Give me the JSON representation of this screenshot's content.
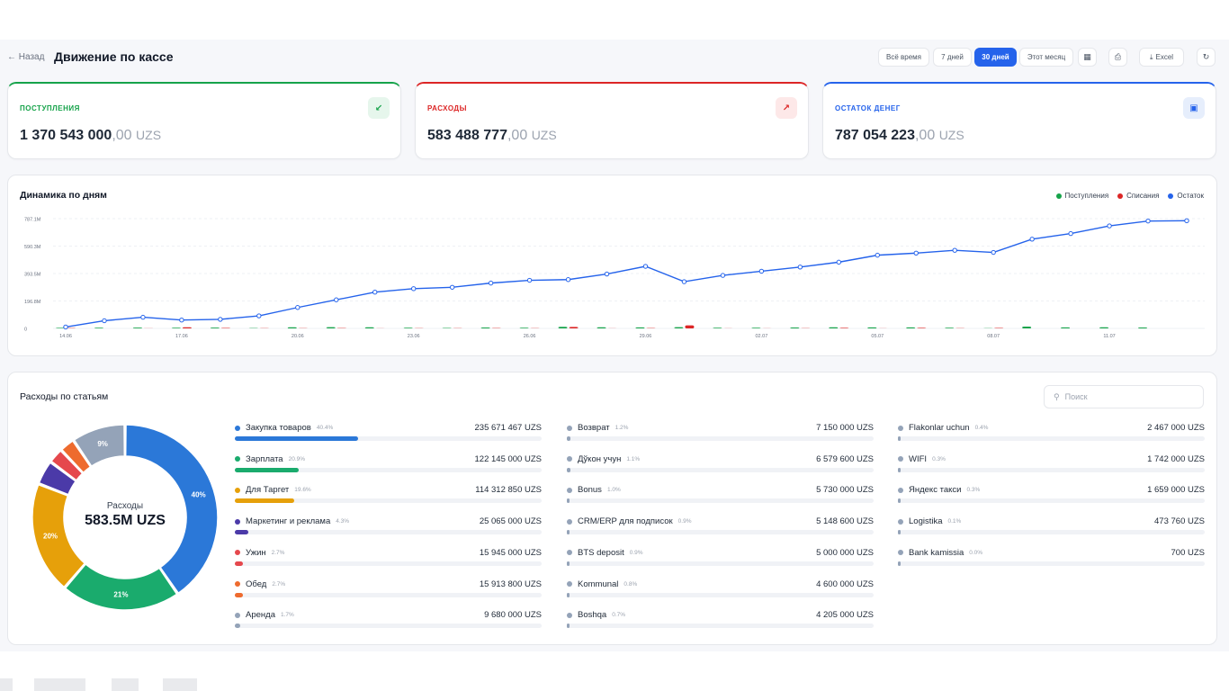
{
  "header": {
    "back_label": "← Назад",
    "title": "Движение по кассе",
    "periods": [
      "Всё время",
      "7 дней",
      "30 дней",
      "Этот месяц"
    ],
    "active_period": "30 дней",
    "excel_label": "Excel"
  },
  "kpis": [
    {
      "label": "ПОСТУПЛЕНИЯ",
      "int": "1 370 543 000",
      "dec": ",00",
      "cur": "UZS",
      "color": "#16a34a",
      "icon": "arrow-down-left-icon",
      "glyph": "↙",
      "bg": "#e6f6ec"
    },
    {
      "label": "РАСХОДЫ",
      "int": "583 488 777",
      "dec": ",00",
      "cur": "UZS",
      "color": "#dc2626",
      "icon": "arrow-up-right-icon",
      "glyph": "↗",
      "bg": "#fde8e8"
    },
    {
      "label": "ОСТАТОК ДЕНЕГ",
      "int": "787 054 223",
      "dec": ",00",
      "cur": "UZS",
      "color": "#2563eb",
      "icon": "wallet-icon",
      "glyph": "▣",
      "bg": "#e6eefc"
    }
  ],
  "daily": {
    "title": "Динамика по дням",
    "legend": [
      {
        "label": "Поступления",
        "color": "#16a34a"
      },
      {
        "label": "Списания",
        "color": "#dc2626"
      },
      {
        "label": "Остаток",
        "color": "#2563eb"
      }
    ]
  },
  "chart_data": {
    "type": "bar",
    "title": "Динамика по дням",
    "y_ticks": [
      "0",
      "196.8M",
      "393.5M",
      "590.3M",
      "787.1M"
    ],
    "y_tick_values": [
      0,
      196.8,
      393.5,
      590.3,
      787.1
    ],
    "ylim": [
      0,
      787.1
    ],
    "x_ticks": [
      "14.06",
      "17.06",
      "20.06",
      "23.06",
      "26.06",
      "29.06",
      "02.07",
      "05.07",
      "08.07",
      "11.07"
    ],
    "categories": [
      "14.06",
      "15.06",
      "16.06",
      "17.06",
      "18.06",
      "19.06",
      "20.06",
      "21.06",
      "22.06",
      "23.06",
      "24.06",
      "25.06",
      "26.06",
      "27.06",
      "28.06",
      "29.06",
      "30.06",
      "01.07",
      "02.07",
      "03.07",
      "04.07",
      "05.07",
      "06.07",
      "07.07",
      "08.07",
      "09.07",
      "10.07",
      "11.07",
      "12.07",
      "13.07"
    ],
    "series": [
      {
        "name": "Поступления",
        "color": "#16a34a",
        "values": [
          30,
          35,
          40,
          35,
          38,
          20,
          60,
          65,
          55,
          35,
          25,
          45,
          35,
          80,
          55,
          50,
          65,
          35,
          35,
          45,
          60,
          50,
          50,
          35,
          10,
          95,
          50,
          55,
          45,
          0
        ]
      },
      {
        "name": "Списания",
        "color": "#dc2626",
        "values": [
          20,
          0,
          8,
          60,
          25,
          10,
          10,
          15,
          5,
          10,
          10,
          20,
          10,
          75,
          5,
          20,
          155,
          5,
          5,
          10,
          30,
          5,
          30,
          10,
          25,
          0,
          0,
          0,
          0,
          0
        ]
      },
      {
        "name": "Остаток",
        "color": "#2563eb",
        "values": [
          10,
          55,
          80,
          60,
          65,
          90,
          150,
          205,
          260,
          285,
          295,
          325,
          345,
          350,
          390,
          445,
          335,
          380,
          410,
          440,
          475,
          525,
          540,
          560,
          545,
          640,
          680,
          735,
          770,
          772
        ]
      }
    ]
  },
  "expenses": {
    "title": "Расходы по статьям",
    "search_placeholder": "Поиск",
    "center_label": "Расходы",
    "center_value": "583.5M UZS",
    "items": [
      {
        "name": "Закупка товаров",
        "pct": "40.4%",
        "amount": "235 671 467 UZS",
        "share": 40.4,
        "color": "#2b78d8"
      },
      {
        "name": "Зарплата",
        "pct": "20.9%",
        "amount": "122 145 000 UZS",
        "share": 20.9,
        "color": "#1aab6d"
      },
      {
        "name": "Для Таргет",
        "pct": "19.6%",
        "amount": "114 312 850 UZS",
        "share": 19.6,
        "color": "#e6a00a"
      },
      {
        "name": "Маркетинг и реклама",
        "pct": "4.3%",
        "amount": "25 065 000 UZS",
        "share": 4.3,
        "color": "#4b3aa8"
      },
      {
        "name": "Ужин",
        "pct": "2.7%",
        "amount": "15 945 000 UZS",
        "share": 2.7,
        "color": "#e5484d"
      },
      {
        "name": "Обед",
        "pct": "2.7%",
        "amount": "15 913 800 UZS",
        "share": 2.7,
        "color": "#ee6b2e"
      },
      {
        "name": "Аренда",
        "pct": "1.7%",
        "amount": "9 680 000 UZS",
        "share": 1.7,
        "color": "#94a3b8"
      },
      {
        "name": "Возврат",
        "pct": "1.2%",
        "amount": "7 150 000 UZS",
        "share": 1.2,
        "color": "#94a3b8"
      },
      {
        "name": "Дўкон учун",
        "pct": "1.1%",
        "amount": "6 579 600 UZS",
        "share": 1.1,
        "color": "#94a3b8"
      },
      {
        "name": "Bonus",
        "pct": "1.0%",
        "amount": "5 730 000 UZS",
        "share": 1.0,
        "color": "#94a3b8"
      },
      {
        "name": "CRM/ERP для подписок",
        "pct": "0.9%",
        "amount": "5 148 600 UZS",
        "share": 0.9,
        "color": "#94a3b8"
      },
      {
        "name": "BTS deposit",
        "pct": "0.9%",
        "amount": "5 000 000 UZS",
        "share": 0.9,
        "color": "#94a3b8"
      },
      {
        "name": "Kommunal",
        "pct": "0.8%",
        "amount": "4 600 000 UZS",
        "share": 0.8,
        "color": "#94a3b8"
      },
      {
        "name": "Boshqa",
        "pct": "0.7%",
        "amount": "4 205 000 UZS",
        "share": 0.7,
        "color": "#94a3b8"
      },
      {
        "name": "Flakonlar uchun",
        "pct": "0.4%",
        "amount": "2 467 000 UZS",
        "share": 0.4,
        "color": "#94a3b8"
      },
      {
        "name": "WIFI",
        "pct": "0.3%",
        "amount": "1 742 000 UZS",
        "share": 0.3,
        "color": "#94a3b8"
      },
      {
        "name": "Яндекс такси",
        "pct": "0.3%",
        "amount": "1 659 000 UZS",
        "share": 0.3,
        "color": "#94a3b8"
      },
      {
        "name": "Logistika",
        "pct": "0.1%",
        "amount": "473 760 UZS",
        "share": 0.1,
        "color": "#94a3b8"
      },
      {
        "name": "Bank kamissia",
        "pct": "0.0%",
        "amount": "700 UZS",
        "share": 0.0,
        "color": "#94a3b8"
      }
    ],
    "donut_labels": [
      "40%",
      "21%",
      "20%",
      "9%"
    ]
  }
}
